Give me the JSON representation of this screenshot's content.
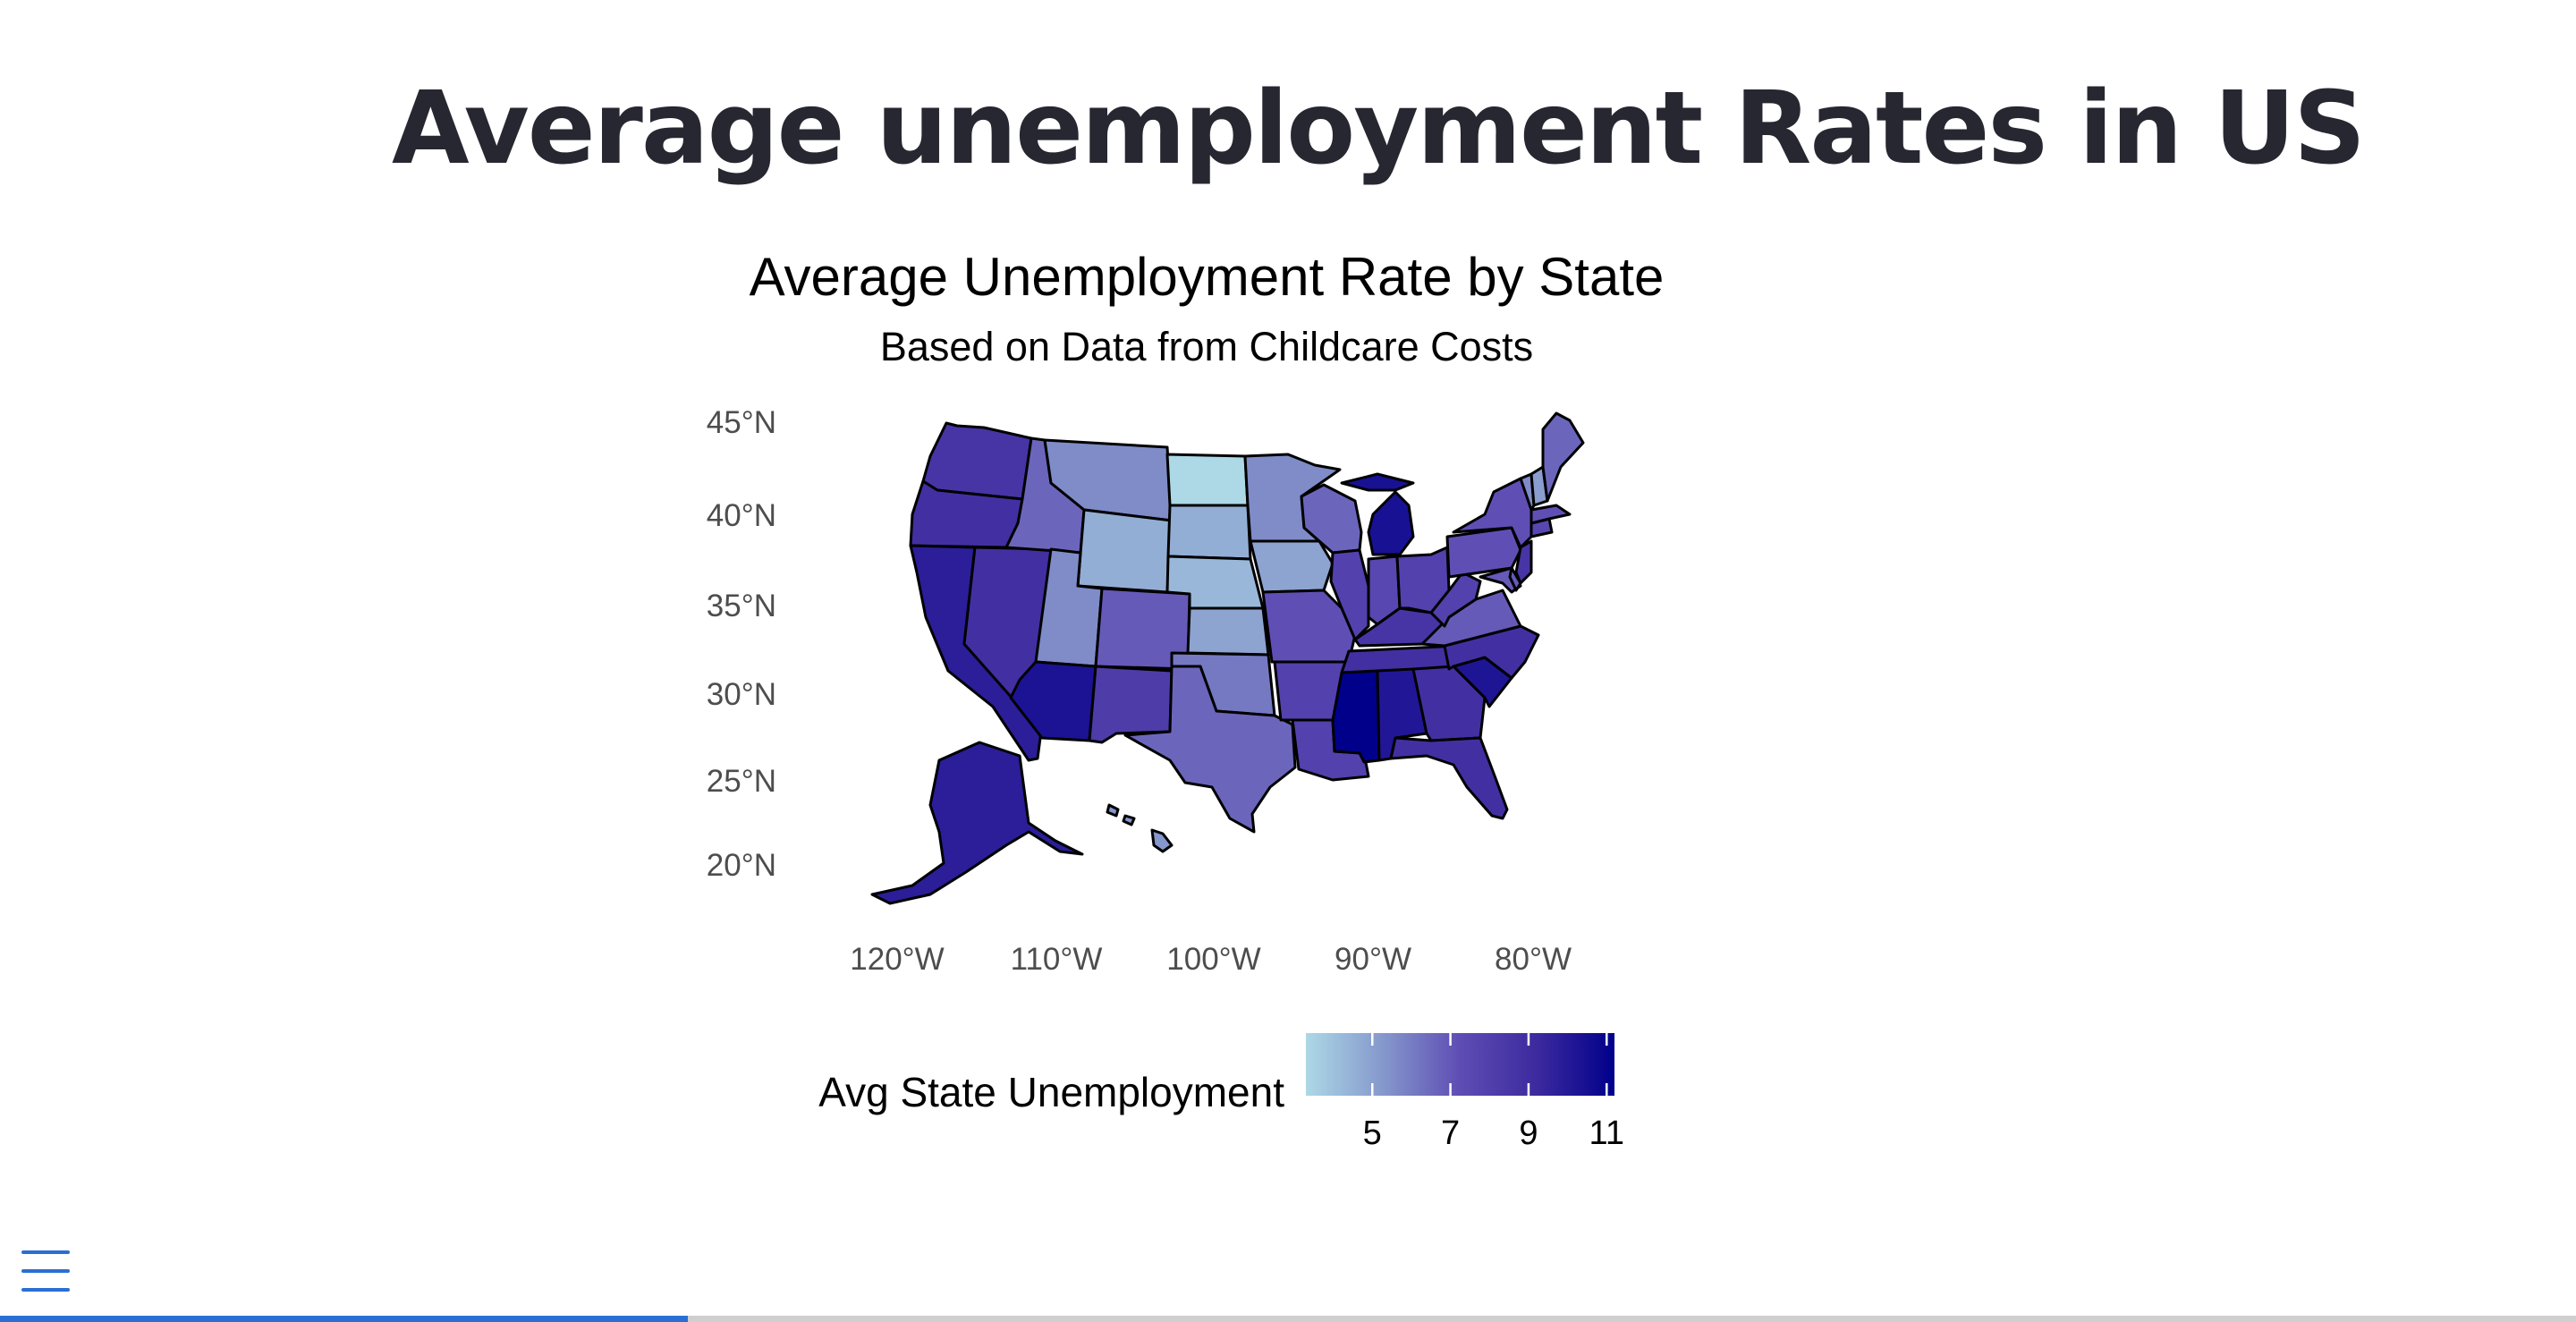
{
  "page": {
    "title": "Average unemployment Rates in US"
  },
  "chart_data": {
    "type": "choropleth",
    "title": "Average Unemployment Rate by State",
    "subtitle": "Based on Data from Childcare Costs",
    "lat_ticks": [
      "45°N",
      "40°N",
      "35°N",
      "30°N",
      "25°N",
      "20°N"
    ],
    "lon_ticks": [
      "120°W",
      "110°W",
      "100°W",
      "90°W",
      "80°W"
    ],
    "legend": {
      "title": "Avg State Unemployment",
      "ticks": [
        "5",
        "7",
        "9",
        "11"
      ],
      "min": 3.3,
      "max": 11.2,
      "colors": [
        "#add8e6",
        "#8598cc",
        "#5e4db4",
        "#3c2a9e",
        "#00008b"
      ]
    },
    "states": [
      {
        "id": "WA",
        "value": 8.6
      },
      {
        "id": "OR",
        "value": 8.9
      },
      {
        "id": "CA",
        "value": 9.8
      },
      {
        "id": "NV",
        "value": 8.9
      },
      {
        "id": "ID",
        "value": 6.6
      },
      {
        "id": "MT",
        "value": 5.6
      },
      {
        "id": "WY",
        "value": 4.6
      },
      {
        "id": "UT",
        "value": 5.6
      },
      {
        "id": "CO",
        "value": 6.9
      },
      {
        "id": "AZ",
        "value": 10.3
      },
      {
        "id": "NM",
        "value": 8.2
      },
      {
        "id": "ND",
        "value": 3.3
      },
      {
        "id": "SD",
        "value": 4.6
      },
      {
        "id": "NE",
        "value": 4.3
      },
      {
        "id": "KS",
        "value": 4.9
      },
      {
        "id": "OK",
        "value": 6.1
      },
      {
        "id": "TX",
        "value": 6.6
      },
      {
        "id": "MN",
        "value": 5.6
      },
      {
        "id": "IA",
        "value": 4.9
      },
      {
        "id": "MO",
        "value": 7.2
      },
      {
        "id": "AR",
        "value": 7.9
      },
      {
        "id": "LA",
        "value": 7.9
      },
      {
        "id": "WI",
        "value": 6.6
      },
      {
        "id": "IL",
        "value": 7.9
      },
      {
        "id": "MI",
        "value": 10.4
      },
      {
        "id": "IN",
        "value": 7.6
      },
      {
        "id": "OH",
        "value": 7.9
      },
      {
        "id": "KY",
        "value": 8.6
      },
      {
        "id": "TN",
        "value": 8.9
      },
      {
        "id": "MS",
        "value": 11.2
      },
      {
        "id": "AL",
        "value": 10.1
      },
      {
        "id": "GA",
        "value": 8.9
      },
      {
        "id": "FL",
        "value": 8.9
      },
      {
        "id": "SC",
        "value": 10.2
      },
      {
        "id": "NC",
        "value": 8.9
      },
      {
        "id": "VA",
        "value": 6.9
      },
      {
        "id": "WV",
        "value": 7.9
      },
      {
        "id": "PA",
        "value": 7.2
      },
      {
        "id": "NY",
        "value": 7.2
      },
      {
        "id": "VT",
        "value": 5.6
      },
      {
        "id": "NH",
        "value": 5.1
      },
      {
        "id": "ME",
        "value": 6.6
      },
      {
        "id": "MA",
        "value": 7.2
      },
      {
        "id": "CT",
        "value": 7.6
      },
      {
        "id": "NJ",
        "value": 8.6
      },
      {
        "id": "MD",
        "value": 6.9
      },
      {
        "id": "DE",
        "value": 6.9
      },
      {
        "id": "AK",
        "value": 9.8
      },
      {
        "id": "HI",
        "value": 5.3
      }
    ]
  },
  "app": {
    "progress": 0.267
  }
}
